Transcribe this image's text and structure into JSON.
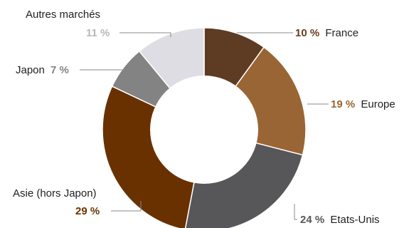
{
  "chart_data": {
    "type": "pie",
    "variant": "donut",
    "slices": [
      {
        "key": "france",
        "name": "France",
        "value": 10,
        "pct_label": "10 %",
        "color": "#5e3b23",
        "pct_color": "#6b3b1f"
      },
      {
        "key": "europe",
        "name": "Europe",
        "value": 19,
        "pct_label": "19 %",
        "color": "#9a6534",
        "pct_color": "#9a6534"
      },
      {
        "key": "usa",
        "name": "Etats-Unis",
        "value": 24,
        "pct_label": "24 %",
        "color": "#57575a",
        "pct_color": "#57575a"
      },
      {
        "key": "asie",
        "name": "Asie (hors Japon)",
        "value": 29,
        "pct_label": "29 %",
        "color": "#693100",
        "pct_color": "#6b3300"
      },
      {
        "key": "japon",
        "name": "Japon",
        "value": 7,
        "pct_label": "7 %",
        "color": "#838383",
        "pct_color": "#838383"
      },
      {
        "key": "autres",
        "name": "Autres marchés",
        "value": 11,
        "pct_label": "11 %",
        "color": "#dedde3",
        "pct_color": "#b8b8bc"
      }
    ]
  }
}
